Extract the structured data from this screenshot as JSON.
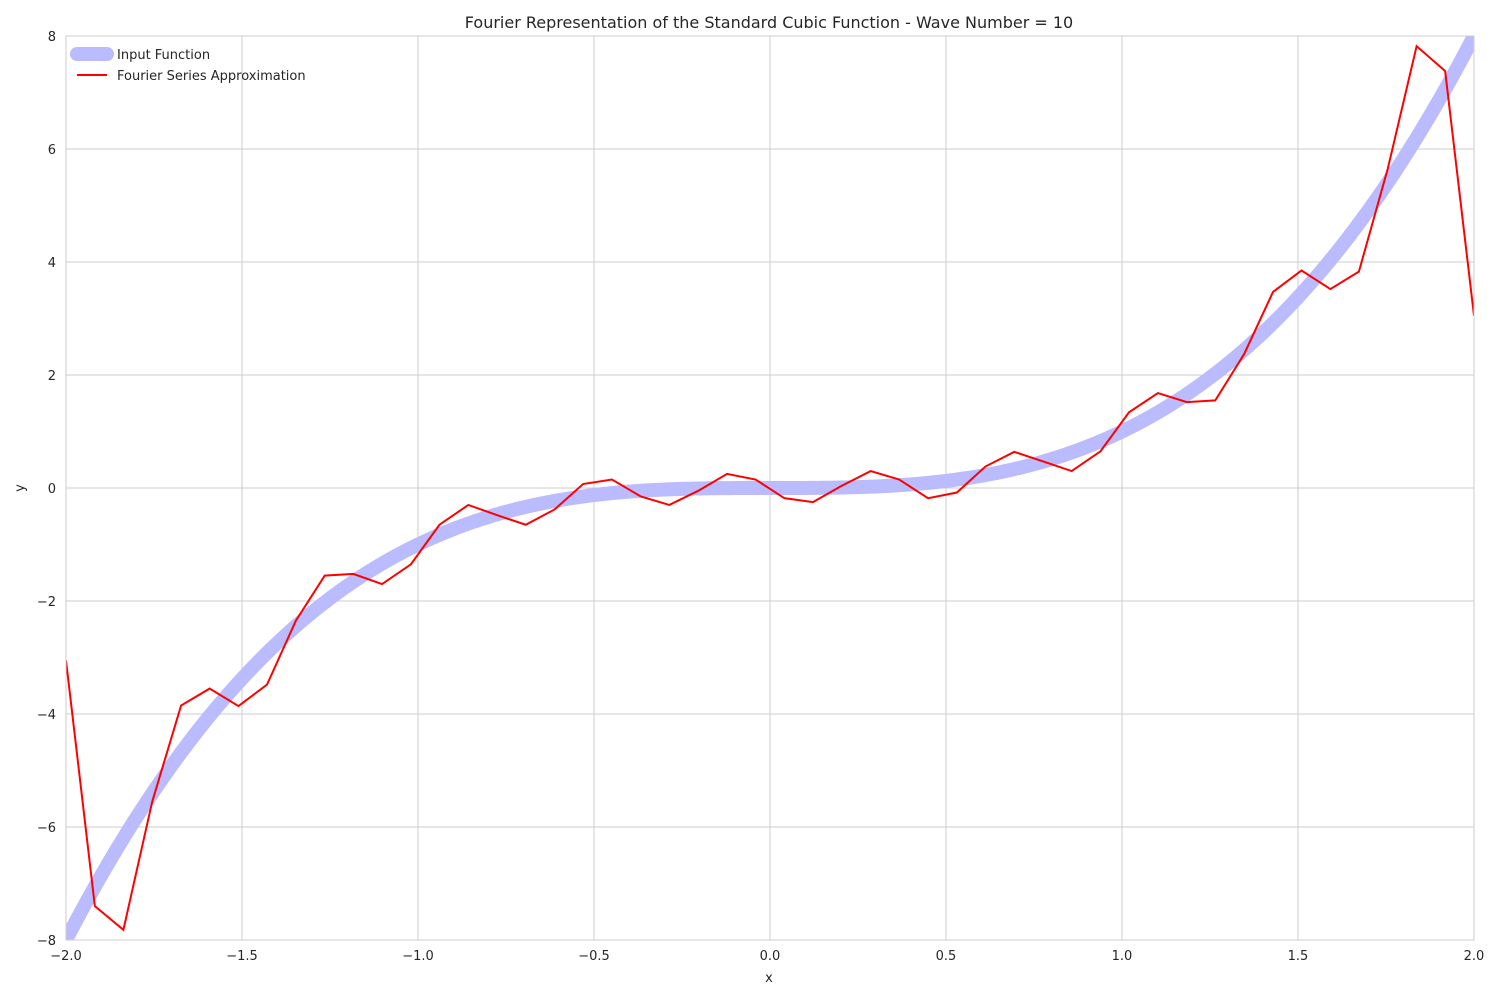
{
  "chart_data": {
    "type": "line",
    "title": "Fourier Representation of the Standard Cubic Function - Wave Number = 10",
    "xlabel": "x",
    "ylabel": "y",
    "xlim": [
      -2.0,
      2.0
    ],
    "ylim": [
      -8,
      8
    ],
    "x_ticks": [
      -2.0,
      -1.5,
      -1.0,
      -0.5,
      0.0,
      0.5,
      1.0,
      1.5,
      2.0
    ],
    "x_tick_labels": [
      "−2.0",
      "−1.5",
      "−1.0",
      "−0.5",
      "0.0",
      "0.5",
      "1.0",
      "1.5",
      "2.0"
    ],
    "y_ticks": [
      -8,
      -6,
      -4,
      -2,
      0,
      2,
      4,
      6,
      8
    ],
    "y_tick_labels": [
      "−8",
      "−6",
      "−4",
      "−2",
      "0",
      "2",
      "4",
      "6",
      "8"
    ],
    "grid": true,
    "legend_position": "top-left",
    "series": [
      {
        "name": "Input Function",
        "color": "#bbbbff",
        "function": "x^3",
        "x": [
          -2.0,
          -1.9,
          -1.8,
          -1.7,
          -1.6,
          -1.5,
          -1.4,
          -1.3,
          -1.2,
          -1.1,
          -1.0,
          -0.9,
          -0.8,
          -0.7,
          -0.6,
          -0.5,
          -0.4,
          -0.3,
          -0.2,
          -0.1,
          0.0,
          0.1,
          0.2,
          0.3,
          0.4,
          0.5,
          0.6,
          0.7,
          0.8,
          0.9,
          1.0,
          1.1,
          1.2,
          1.3,
          1.4,
          1.5,
          1.6,
          1.7,
          1.8,
          1.9,
          2.0
        ],
        "y": [
          -8.0,
          -6.859,
          -5.832,
          -4.913,
          -4.096,
          -3.375,
          -2.744,
          -2.197,
          -1.728,
          -1.331,
          -1.0,
          -0.729,
          -0.512,
          -0.343,
          -0.216,
          -0.125,
          -0.064,
          -0.027,
          -0.008,
          -0.001,
          0.0,
          0.001,
          0.008,
          0.027,
          0.064,
          0.125,
          0.216,
          0.343,
          0.512,
          0.729,
          1.0,
          1.331,
          1.728,
          2.197,
          2.744,
          3.375,
          4.096,
          4.913,
          5.832,
          6.859,
          8.0
        ]
      },
      {
        "name": "Fourier Series Approximation",
        "color": "#ff0000",
        "x": [
          -2.0,
          -1.918,
          -1.837,
          -1.755,
          -1.673,
          -1.592,
          -1.51,
          -1.429,
          -1.347,
          -1.265,
          -1.184,
          -1.102,
          -1.02,
          -0.939,
          -0.857,
          -0.776,
          -0.694,
          -0.612,
          -0.531,
          -0.449,
          -0.367,
          -0.286,
          -0.204,
          -0.122,
          -0.041,
          0.041,
          0.122,
          0.204,
          0.286,
          0.367,
          0.449,
          0.531,
          0.612,
          0.694,
          0.776,
          0.857,
          0.939,
          1.02,
          1.102,
          1.184,
          1.265,
          1.347,
          1.429,
          1.51,
          1.592,
          1.673,
          1.755,
          1.837,
          1.918,
          2.0
        ],
        "y": [
          -3.05,
          -7.4,
          -7.82,
          -5.55,
          -3.85,
          -3.55,
          -3.86,
          -3.48,
          -2.35,
          -1.55,
          -1.52,
          -1.7,
          -1.35,
          -0.65,
          -0.3,
          -0.48,
          -0.65,
          -0.38,
          0.07,
          0.15,
          -0.15,
          -0.3,
          -0.05,
          0.25,
          0.15,
          -0.18,
          -0.25,
          0.04,
          0.3,
          0.15,
          -0.18,
          -0.08,
          0.38,
          0.64,
          0.47,
          0.3,
          0.65,
          1.34,
          1.68,
          1.52,
          1.55,
          2.37,
          3.47,
          3.85,
          3.52,
          3.83,
          5.65,
          7.82,
          7.38,
          3.05
        ]
      }
    ]
  }
}
